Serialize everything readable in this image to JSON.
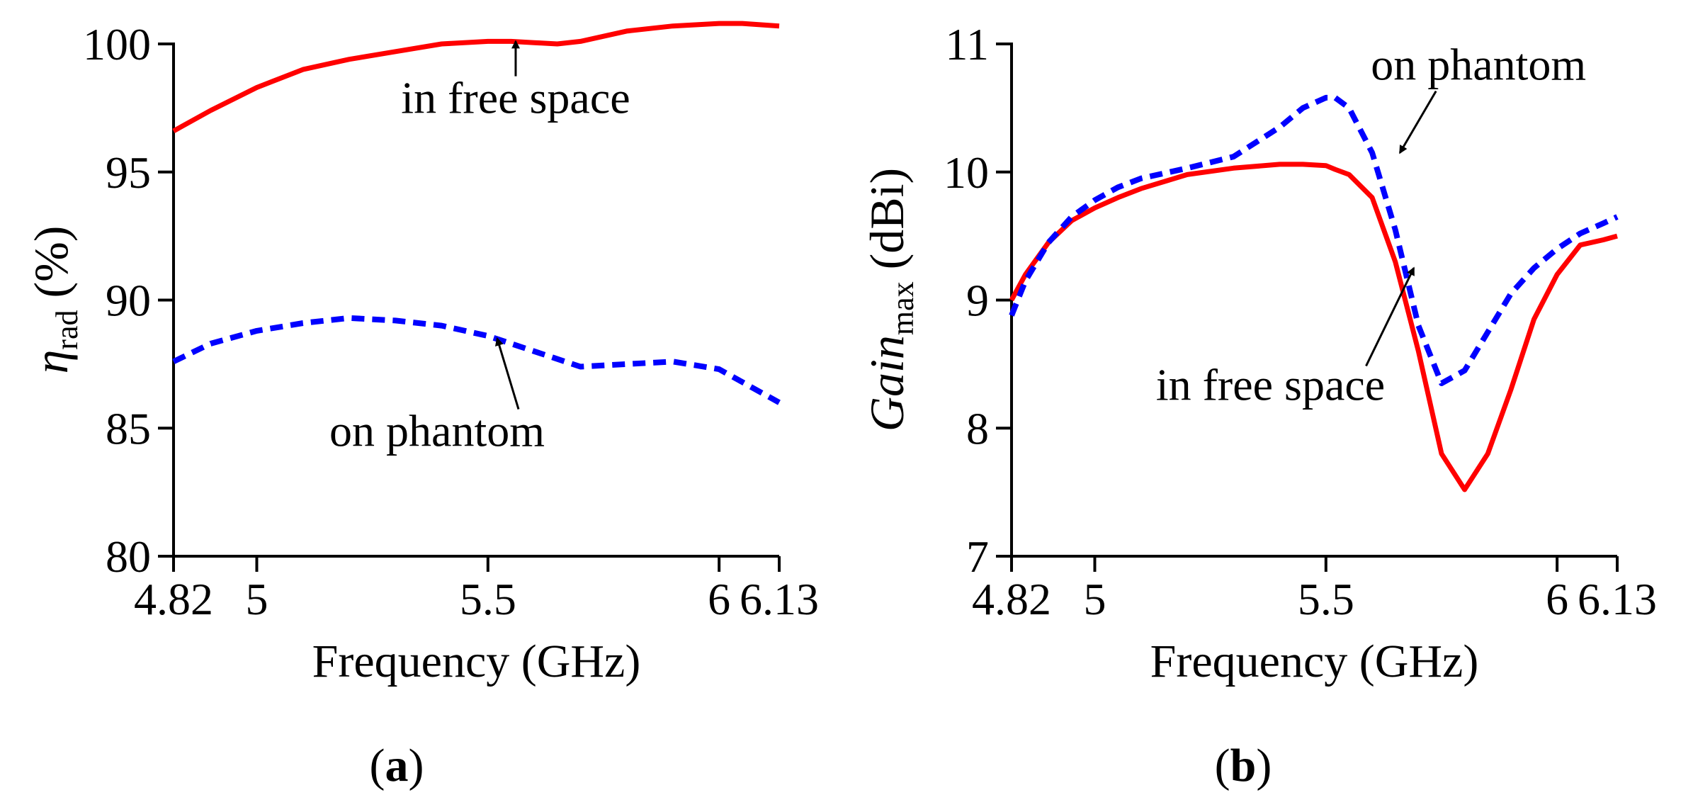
{
  "chart_data": [
    {
      "panel_label": "a",
      "type": "line",
      "xlabel": "Frequency (GHz)",
      "ylabel_main": "η",
      "ylabel_sub": "rad",
      "ylabel_suffix": "(%)",
      "xlim": [
        4.82,
        6.13
      ],
      "ylim": [
        80,
        100
      ],
      "xticks": [
        4.82,
        5,
        5.5,
        6,
        6.13
      ],
      "xtick_labels": [
        "4.82",
        "5",
        "5.5",
        "6",
        "6.13"
      ],
      "yticks": [
        80,
        85,
        90,
        95,
        100
      ],
      "ytick_labels": [
        "80",
        "85",
        "90",
        "95",
        "100"
      ],
      "series": [
        {
          "name": "in free space",
          "color": "#ff0000",
          "style": "solid",
          "x": [
            4.82,
            4.9,
            5.0,
            5.1,
            5.2,
            5.3,
            5.4,
            5.5,
            5.55,
            5.6,
            5.65,
            5.7,
            5.8,
            5.9,
            6.0,
            6.05,
            6.13
          ],
          "y": [
            96.6,
            97.4,
            98.3,
            99.0,
            99.4,
            99.7,
            100.0,
            100.1,
            100.1,
            100.05,
            100.0,
            100.1,
            100.5,
            100.7,
            100.8,
            100.8,
            100.7
          ]
        },
        {
          "name": "on phantom",
          "color": "#0000ff",
          "style": "dashed",
          "x": [
            4.82,
            4.9,
            5.0,
            5.1,
            5.2,
            5.3,
            5.4,
            5.5,
            5.6,
            5.7,
            5.8,
            5.9,
            6.0,
            6.13
          ],
          "y": [
            87.6,
            88.3,
            88.8,
            89.1,
            89.3,
            89.2,
            89.0,
            88.6,
            88.0,
            87.4,
            87.5,
            87.6,
            87.3,
            86.0
          ]
        }
      ],
      "annotations": [
        {
          "text": "in free space",
          "series": "in free space",
          "arrow_x": 5.56,
          "arrow_y": 100.1,
          "text_x": 5.56,
          "text_y": 97.3
        },
        {
          "text": "on phantom",
          "series": "on phantom",
          "arrow_x": 5.52,
          "arrow_y": 88.5,
          "text_x": 5.39,
          "text_y": 84.3
        }
      ]
    },
    {
      "panel_label": "b",
      "type": "line",
      "xlabel": "Frequency (GHz)",
      "ylabel_main": "Gain",
      "ylabel_sub": "max",
      "ylabel_suffix": "(dBi)",
      "xlim": [
        4.82,
        6.13
      ],
      "ylim": [
        7,
        11
      ],
      "xticks": [
        4.82,
        5,
        5.5,
        6,
        6.13
      ],
      "xtick_labels": [
        "4.82",
        "5",
        "5.5",
        "6",
        "6.13"
      ],
      "yticks": [
        7,
        8,
        9,
        10,
        11
      ],
      "ytick_labels": [
        "7",
        "8",
        "9",
        "10",
        "11"
      ],
      "series": [
        {
          "name": "in free space",
          "color": "#ff0000",
          "style": "solid",
          "x": [
            4.82,
            4.85,
            4.9,
            4.95,
            5.0,
            5.05,
            5.1,
            5.2,
            5.3,
            5.4,
            5.45,
            5.5,
            5.52,
            5.55,
            5.6,
            5.65,
            5.7,
            5.75,
            5.8,
            5.85,
            5.9,
            5.95,
            6.0,
            6.05,
            6.1,
            6.13
          ],
          "y": [
            9.0,
            9.2,
            9.45,
            9.62,
            9.72,
            9.8,
            9.87,
            9.98,
            10.03,
            10.06,
            10.06,
            10.05,
            10.02,
            9.98,
            9.8,
            9.3,
            8.6,
            7.8,
            7.52,
            7.8,
            8.3,
            8.85,
            9.2,
            9.43,
            9.47,
            9.5
          ]
        },
        {
          "name": "on phantom",
          "color": "#0000ff",
          "style": "dashed",
          "x": [
            4.82,
            4.85,
            4.9,
            4.95,
            5.0,
            5.05,
            5.1,
            5.2,
            5.3,
            5.4,
            5.45,
            5.5,
            5.52,
            5.55,
            5.6,
            5.65,
            5.7,
            5.75,
            5.8,
            5.85,
            5.9,
            5.95,
            6.0,
            6.05,
            6.1,
            6.13
          ],
          "y": [
            8.88,
            9.15,
            9.45,
            9.65,
            9.78,
            9.88,
            9.95,
            10.03,
            10.12,
            10.35,
            10.5,
            10.58,
            10.58,
            10.5,
            10.15,
            9.55,
            8.8,
            8.35,
            8.45,
            8.75,
            9.05,
            9.25,
            9.4,
            9.52,
            9.6,
            9.65
          ]
        }
      ],
      "annotations": [
        {
          "text": "on phantom",
          "series": "on phantom",
          "arrow_x": 5.66,
          "arrow_y": 10.15,
          "text_x": 5.83,
          "text_y": 10.72
        },
        {
          "text": "in free space",
          "series": "in free space",
          "arrow_x": 5.69,
          "arrow_y": 9.25,
          "text_x": 5.38,
          "text_y": 8.22
        }
      ]
    }
  ]
}
